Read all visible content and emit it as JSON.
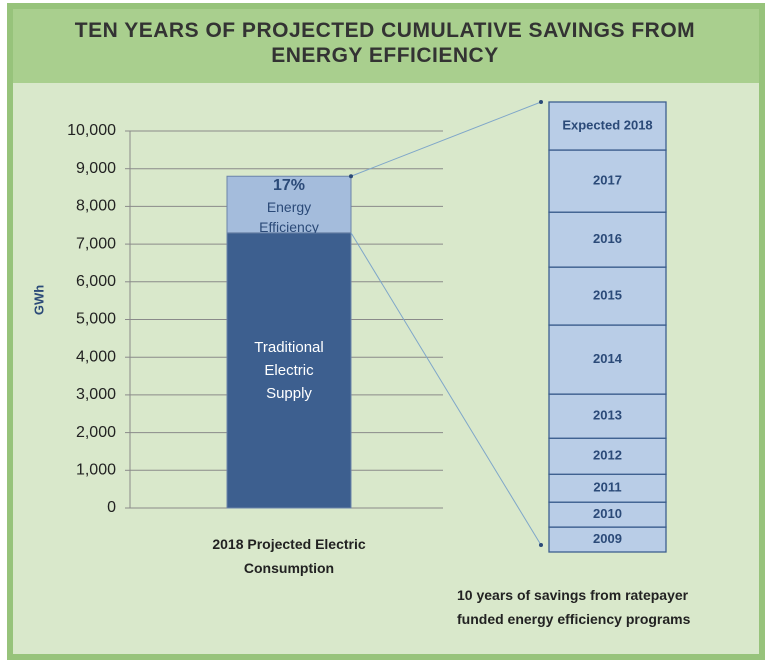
{
  "chart_data": {
    "type": "bar",
    "title": "TEN YEARS OF PROJECTED CUMULATIVE SAVINGS FROM ENERGY EFFICIENCY",
    "y_label": "GWh",
    "categories": [
      "2018 Projected Electric Consumption"
    ],
    "series": [
      {
        "name": "Traditional Electric Supply",
        "color": "#3d5f8f",
        "values": [
          7300
        ]
      },
      {
        "name": "Energy Efficiency",
        "color": "#a4bcdc",
        "values": [
          1500
        ]
      }
    ],
    "share_label": "17%",
    "ylim": [
      0,
      10000
    ],
    "yticks": [
      0,
      {
        "value": 1000,
        "label": "1,000"
      },
      {
        "value": 2000,
        "label": "2,000"
      },
      {
        "value": 3000,
        "label": "3,000"
      },
      {
        "value": 4000,
        "label": "4,000"
      },
      {
        "value": 5000,
        "label": "5,000"
      },
      {
        "value": 6000,
        "label": "6,000"
      },
      {
        "value": 7000,
        "label": "7,000"
      },
      {
        "value": 8000,
        "label": "8,000"
      },
      {
        "value": 9000,
        "label": "9,000"
      },
      {
        "value": 10000,
        "label": "10,000"
      }
    ],
    "grid": true,
    "breakout": {
      "categories": [
        "2009",
        "2010",
        "2011",
        "2012",
        "2013",
        "2014",
        "2015",
        "2016",
        "2017",
        "Expected 2018"
      ],
      "values": [
        83,
        83,
        93,
        120,
        147,
        230,
        193,
        183,
        207,
        160
      ],
      "color": "#b9cde7",
      "note": "10 years of savings from ratepayer funded energy efficiency programs"
    }
  }
}
